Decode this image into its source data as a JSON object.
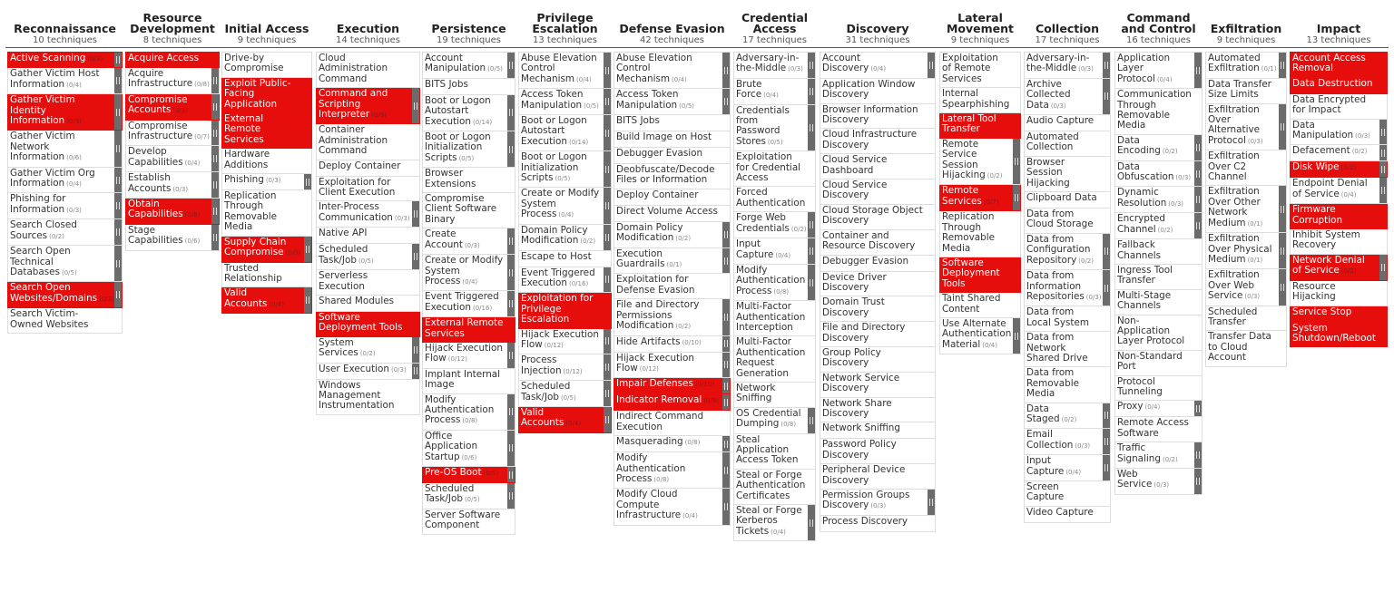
{
  "tactics": [
    {
      "name": "Reconnaissance",
      "count": "10 techniques",
      "techniques": [
        {
          "name": "Active Scanning",
          "count": "(0/3)",
          "highlight": true
        },
        {
          "name": "Gather Victim Host Information",
          "count": "(0/4)"
        },
        {
          "name": "Gather Victim Identity Information",
          "count": "(0/3)",
          "highlight": true
        },
        {
          "name": "Gather Victim Network Information",
          "count": "(0/6)"
        },
        {
          "name": "Gather Victim Org Information",
          "count": "(0/4)"
        },
        {
          "name": "Phishing for Information",
          "count": "(0/3)"
        },
        {
          "name": "Search Closed Sources",
          "count": "(0/2)"
        },
        {
          "name": "Search Open Technical Databases",
          "count": "(0/5)"
        },
        {
          "name": "Search Open Websites/Domains",
          "count": "(0/3)",
          "highlight": true
        },
        {
          "name": "Search Victim-Owned Websites"
        }
      ]
    },
    {
      "name": "Resource Development",
      "count": "8 techniques",
      "techniques": [
        {
          "name": "Acquire Access",
          "highlight": true
        },
        {
          "name": "Acquire Infrastructure",
          "count": "(0/8)"
        },
        {
          "name": "Compromise Accounts",
          "count": "(0/3)",
          "highlight": true
        },
        {
          "name": "Compromise Infrastructure",
          "count": "(0/7)"
        },
        {
          "name": "Develop Capabilities",
          "count": "(0/4)"
        },
        {
          "name": "Establish Accounts",
          "count": "(0/3)"
        },
        {
          "name": "Obtain Capabilities",
          "count": "(0/6)",
          "highlight": true
        },
        {
          "name": "Stage Capabilities",
          "count": "(0/6)"
        }
      ]
    },
    {
      "name": "Initial Access",
      "count": "9 techniques",
      "techniques": [
        {
          "name": "Drive-by Compromise"
        },
        {
          "name": "Exploit Public-Facing Application",
          "highlight": true
        },
        {
          "name": "External Remote Services",
          "highlight": true
        },
        {
          "name": "Hardware Additions"
        },
        {
          "name": "Phishing",
          "count": "(0/3)"
        },
        {
          "name": "Replication Through Removable Media"
        },
        {
          "name": "Supply Chain Compromise",
          "count": "(0/3)",
          "highlight": true
        },
        {
          "name": "Trusted Relationship"
        },
        {
          "name": "Valid Accounts",
          "count": "(0/4)",
          "highlight": true
        }
      ]
    },
    {
      "name": "Execution",
      "count": "14 techniques",
      "techniques": [
        {
          "name": "Cloud Administration Command"
        },
        {
          "name": "Command and Scripting Interpreter",
          "count": "(0/9)",
          "highlight": true
        },
        {
          "name": "Container Administration Command"
        },
        {
          "name": "Deploy Container"
        },
        {
          "name": "Exploitation for Client Execution"
        },
        {
          "name": "Inter-Process Communication",
          "count": "(0/3)"
        },
        {
          "name": "Native API"
        },
        {
          "name": "Scheduled Task/Job",
          "count": "(0/5)"
        },
        {
          "name": "Serverless Execution"
        },
        {
          "name": "Shared Modules"
        },
        {
          "name": "Software Deployment Tools",
          "highlight": true
        },
        {
          "name": "System Services",
          "count": "(0/2)"
        },
        {
          "name": "User Execution",
          "count": "(0/3)"
        },
        {
          "name": "Windows Management Instrumentation"
        }
      ]
    },
    {
      "name": "Persistence",
      "count": "19 techniques",
      "techniques": [
        {
          "name": "Account Manipulation",
          "count": "(0/5)"
        },
        {
          "name": "BITS Jobs"
        },
        {
          "name": "Boot or Logon Autostart Execution",
          "count": "(0/14)"
        },
        {
          "name": "Boot or Logon Initialization Scripts",
          "count": "(0/5)"
        },
        {
          "name": "Browser Extensions"
        },
        {
          "name": "Compromise Client Software Binary"
        },
        {
          "name": "Create Account",
          "count": "(0/3)"
        },
        {
          "name": "Create or Modify System Process",
          "count": "(0/4)"
        },
        {
          "name": "Event Triggered Execution",
          "count": "(0/16)"
        },
        {
          "name": "External Remote Services",
          "highlight": true
        },
        {
          "name": "Hijack Execution Flow",
          "count": "(0/12)"
        },
        {
          "name": "Implant Internal Image"
        },
        {
          "name": "Modify Authentication Process",
          "count": "(0/8)"
        },
        {
          "name": "Office Application Startup",
          "count": "(0/6)"
        },
        {
          "name": "Pre-OS Boot",
          "count": "(0/5)",
          "highlight": true
        },
        {
          "name": "Scheduled Task/Job",
          "count": "(0/5)"
        },
        {
          "name": "Server Software Component"
        }
      ]
    },
    {
      "name": "Privilege Escalation",
      "count": "13 techniques",
      "techniques": [
        {
          "name": "Abuse Elevation Control Mechanism",
          "count": "(0/4)"
        },
        {
          "name": "Access Token Manipulation",
          "count": "(0/5)"
        },
        {
          "name": "Boot or Logon Autostart Execution",
          "count": "(0/14)"
        },
        {
          "name": "Boot or Logon Initialization Scripts",
          "count": "(0/5)"
        },
        {
          "name": "Create or Modify System Process",
          "count": "(0/4)"
        },
        {
          "name": "Domain Policy Modification",
          "count": "(0/2)"
        },
        {
          "name": "Escape to Host"
        },
        {
          "name": "Event Triggered Execution",
          "count": "(0/16)"
        },
        {
          "name": "Exploitation for Privilege Escalation",
          "highlight": true
        },
        {
          "name": "Hijack Execution Flow",
          "count": "(0/12)"
        },
        {
          "name": "Process Injection",
          "count": "(0/12)"
        },
        {
          "name": "Scheduled Task/Job",
          "count": "(0/5)"
        },
        {
          "name": "Valid Accounts",
          "count": "(0/4)",
          "highlight": true
        }
      ]
    },
    {
      "name": "Defense Evasion",
      "count": "42 techniques",
      "techniques": [
        {
          "name": "Abuse Elevation Control Mechanism",
          "count": "(0/4)"
        },
        {
          "name": "Access Token Manipulation",
          "count": "(0/5)"
        },
        {
          "name": "BITS Jobs"
        },
        {
          "name": "Build Image on Host"
        },
        {
          "name": "Debugger Evasion"
        },
        {
          "name": "Deobfuscate/Decode Files or Information"
        },
        {
          "name": "Deploy Container"
        },
        {
          "name": "Direct Volume Access"
        },
        {
          "name": "Domain Policy Modification",
          "count": "(0/2)"
        },
        {
          "name": "Execution Guardrails",
          "count": "(0/1)"
        },
        {
          "name": "Exploitation for Defense Evasion"
        },
        {
          "name": "File and Directory Permissions Modification",
          "count": "(0/2)"
        },
        {
          "name": "Hide Artifacts",
          "count": "(0/10)"
        },
        {
          "name": "Hijack Execution Flow",
          "count": "(0/12)"
        },
        {
          "name": "Impair Defenses",
          "count": "(0/10)",
          "highlight": true
        },
        {
          "name": "Indicator Removal",
          "count": "(0/9)",
          "highlight": true
        },
        {
          "name": "Indirect Command Execution"
        },
        {
          "name": "Masquerading",
          "count": "(0/8)"
        },
        {
          "name": "Modify Authentication Process",
          "count": "(0/8)"
        },
        {
          "name": "Modify Cloud Compute Infrastructure",
          "count": "(0/4)"
        }
      ]
    },
    {
      "name": "Credential Access",
      "count": "17 techniques",
      "techniques": [
        {
          "name": "Adversary-in-the-Middle",
          "count": "(0/3)"
        },
        {
          "name": "Brute Force",
          "count": "(0/4)"
        },
        {
          "name": "Credentials from Password Stores",
          "count": "(0/5)"
        },
        {
          "name": "Exploitation for Credential Access"
        },
        {
          "name": "Forced Authentication"
        },
        {
          "name": "Forge Web Credentials",
          "count": "(0/2)"
        },
        {
          "name": "Input Capture",
          "count": "(0/4)"
        },
        {
          "name": "Modify Authentication Process",
          "count": "(0/8)"
        },
        {
          "name": "Multi-Factor Authentication Interception"
        },
        {
          "name": "Multi-Factor Authentication Request Generation"
        },
        {
          "name": "Network Sniffing"
        },
        {
          "name": "OS Credential Dumping",
          "count": "(0/8)"
        },
        {
          "name": "Steal Application Access Token"
        },
        {
          "name": "Steal or Forge Authentication Certificates"
        },
        {
          "name": "Steal or Forge Kerberos Tickets",
          "count": "(0/4)"
        }
      ]
    },
    {
      "name": "Discovery",
      "count": "31 techniques",
      "techniques": [
        {
          "name": "Account Discovery",
          "count": "(0/4)"
        },
        {
          "name": "Application Window Discovery"
        },
        {
          "name": "Browser Information Discovery"
        },
        {
          "name": "Cloud Infrastructure Discovery"
        },
        {
          "name": "Cloud Service Dashboard"
        },
        {
          "name": "Cloud Service Discovery"
        },
        {
          "name": "Cloud Storage Object Discovery"
        },
        {
          "name": "Container and Resource Discovery"
        },
        {
          "name": "Debugger Evasion"
        },
        {
          "name": "Device Driver Discovery"
        },
        {
          "name": "Domain Trust Discovery"
        },
        {
          "name": "File and Directory Discovery"
        },
        {
          "name": "Group Policy Discovery"
        },
        {
          "name": "Network Service Discovery"
        },
        {
          "name": "Network Share Discovery"
        },
        {
          "name": "Network Sniffing"
        },
        {
          "name": "Password Policy Discovery"
        },
        {
          "name": "Peripheral Device Discovery"
        },
        {
          "name": "Permission Groups Discovery",
          "count": "(0/3)"
        },
        {
          "name": "Process Discovery"
        }
      ]
    },
    {
      "name": "Lateral Movement",
      "count": "9 techniques",
      "techniques": [
        {
          "name": "Exploitation of Remote Services"
        },
        {
          "name": "Internal Spearphishing"
        },
        {
          "name": "Lateral Tool Transfer",
          "highlight": true
        },
        {
          "name": "Remote Service Session Hijacking",
          "count": "(0/2)"
        },
        {
          "name": "Remote Services",
          "count": "(0/7)",
          "highlight": true
        },
        {
          "name": "Replication Through Removable Media"
        },
        {
          "name": "Software Deployment Tools",
          "highlight": true
        },
        {
          "name": "Taint Shared Content"
        },
        {
          "name": "Use Alternate Authentication Material",
          "count": "(0/4)"
        }
      ]
    },
    {
      "name": "Collection",
      "count": "17 techniques",
      "techniques": [
        {
          "name": "Adversary-in-the-Middle",
          "count": "(0/3)"
        },
        {
          "name": "Archive Collected Data",
          "count": "(0/3)"
        },
        {
          "name": "Audio Capture"
        },
        {
          "name": "Automated Collection"
        },
        {
          "name": "Browser Session Hijacking"
        },
        {
          "name": "Clipboard Data"
        },
        {
          "name": "Data from Cloud Storage"
        },
        {
          "name": "Data from Configuration Repository",
          "count": "(0/2)"
        },
        {
          "name": "Data from Information Repositories",
          "count": "(0/3)"
        },
        {
          "name": "Data from Local System"
        },
        {
          "name": "Data from Network Shared Drive"
        },
        {
          "name": "Data from Removable Media"
        },
        {
          "name": "Data Staged",
          "count": "(0/2)"
        },
        {
          "name": "Email Collection",
          "count": "(0/3)"
        },
        {
          "name": "Input Capture",
          "count": "(0/4)"
        },
        {
          "name": "Screen Capture"
        },
        {
          "name": "Video Capture"
        }
      ]
    },
    {
      "name": "Command and Control",
      "count": "16 techniques",
      "techniques": [
        {
          "name": "Application Layer Protocol",
          "count": "(0/4)"
        },
        {
          "name": "Communication Through Removable Media"
        },
        {
          "name": "Data Encoding",
          "count": "(0/2)"
        },
        {
          "name": "Data Obfuscation",
          "count": "(0/3)"
        },
        {
          "name": "Dynamic Resolution",
          "count": "(0/3)"
        },
        {
          "name": "Encrypted Channel",
          "count": "(0/2)"
        },
        {
          "name": "Fallback Channels"
        },
        {
          "name": "Ingress Tool Transfer"
        },
        {
          "name": "Multi-Stage Channels"
        },
        {
          "name": "Non-Application Layer Protocol"
        },
        {
          "name": "Non-Standard Port"
        },
        {
          "name": "Protocol Tunneling"
        },
        {
          "name": "Proxy",
          "count": "(0/4)"
        },
        {
          "name": "Remote Access Software"
        },
        {
          "name": "Traffic Signaling",
          "count": "(0/2)"
        },
        {
          "name": "Web Service",
          "count": "(0/3)"
        }
      ]
    },
    {
      "name": "Exfiltration",
      "count": "9 techniques",
      "techniques": [
        {
          "name": "Automated Exfiltration",
          "count": "(0/1)"
        },
        {
          "name": "Data Transfer Size Limits"
        },
        {
          "name": "Exfiltration Over Alternative Protocol",
          "count": "(0/3)"
        },
        {
          "name": "Exfiltration Over C2 Channel"
        },
        {
          "name": "Exfiltration Over Other Network Medium",
          "count": "(0/1)"
        },
        {
          "name": "Exfiltration Over Physical Medium",
          "count": "(0/1)"
        },
        {
          "name": "Exfiltration Over Web Service",
          "count": "(0/3)"
        },
        {
          "name": "Scheduled Transfer"
        },
        {
          "name": "Transfer Data to Cloud Account"
        }
      ]
    },
    {
      "name": "Impact",
      "count": "13 techniques",
      "techniques": [
        {
          "name": "Account Access Removal",
          "highlight": true
        },
        {
          "name": "Data Destruction",
          "highlight": true
        },
        {
          "name": "Data Encrypted for Impact"
        },
        {
          "name": "Data Manipulation",
          "count": "(0/3)"
        },
        {
          "name": "Defacement",
          "count": "(0/2)"
        },
        {
          "name": "Disk Wipe",
          "count": "(0/2)",
          "highlight": true
        },
        {
          "name": "Endpoint Denial of Service",
          "count": "(0/4)"
        },
        {
          "name": "Firmware Corruption",
          "highlight": true
        },
        {
          "name": "Inhibit System Recovery"
        },
        {
          "name": "Network Denial of Service",
          "count": "(0/2)",
          "highlight": true
        },
        {
          "name": "Resource Hijacking"
        },
        {
          "name": "Service Stop",
          "highlight": true
        },
        {
          "name": "System Shutdown/Reboot",
          "highlight": true
        }
      ]
    }
  ]
}
